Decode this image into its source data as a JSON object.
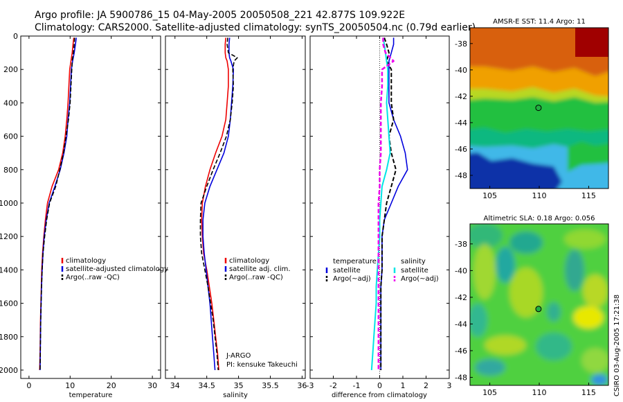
{
  "header": {
    "line1": "Argo profile: JA 5900786_15 04-May-2005 20050508_221 42.877S 109.922E",
    "line2": "Climatology: CARS2000. Satellite-adjusted climatology: synTS_20050504.nc (0.79d earlier)"
  },
  "colors": {
    "climatology": "#ee0000",
    "satellite": "#0000dd",
    "argo": "#000000",
    "salinity_satellite": "#00e5e5",
    "salinity_argo": "#ee00ee"
  },
  "chart_data": [
    {
      "type": "line",
      "name": "temperature-panel",
      "xlabel": "temperature",
      "ylabel": "",
      "xlim": [
        -2,
        32
      ],
      "ylim": [
        2050,
        0
      ],
      "xticks": [
        "0",
        "10",
        "20",
        "30"
      ],
      "yticks": [
        "0",
        "200",
        "400",
        "600",
        "800",
        "1000",
        "1200",
        "1400",
        "1600",
        "1800",
        "2000"
      ],
      "legend": [
        "climatology",
        "satellite-adjusted climatology",
        "Argo(..raw -QC)"
      ],
      "legend_position": "lower-right",
      "depth": [
        10,
        50,
        100,
        150,
        200,
        300,
        400,
        500,
        600,
        700,
        800,
        900,
        1000,
        1100,
        1200,
        1300,
        1400,
        1500,
        1600,
        1700,
        1800,
        1900,
        2000
      ],
      "series": [
        {
          "name": "climatology",
          "values": [
            10.9,
            10.7,
            10.5,
            10.2,
            9.9,
            9.7,
            9.5,
            9.2,
            8.8,
            8.2,
            7.2,
            5.6,
            4.5,
            4.0,
            3.6,
            3.3,
            3.1,
            3.0,
            2.9,
            2.8,
            2.75,
            2.7,
            2.6
          ]
        },
        {
          "name": "satellite-adjusted climatology",
          "values": [
            11.5,
            11.3,
            11.0,
            10.6,
            10.3,
            10.1,
            9.9,
            9.5,
            9.2,
            8.5,
            7.6,
            6.3,
            4.9,
            4.2,
            3.7,
            3.4,
            3.2,
            3.05,
            2.95,
            2.85,
            2.8,
            2.75,
            2.7
          ]
        },
        {
          "name": "Argo(..raw -QC)",
          "values": [
            11.1,
            11.0,
            10.8,
            10.5,
            10.4,
            10.2,
            10.0,
            9.6,
            9.0,
            8.4,
            7.5,
            6.5,
            5.0,
            4.3,
            3.8,
            3.4,
            3.2,
            3.05,
            2.95,
            2.85,
            2.8,
            2.75,
            2.7
          ]
        }
      ]
    },
    {
      "type": "line",
      "name": "salinity-panel",
      "xlabel": "salinity",
      "ylabel": "",
      "xlim": [
        33.85,
        36.05
      ],
      "ylim": [
        2050,
        0
      ],
      "xticks": [
        "34",
        "34.5",
        "35",
        "35.5",
        "36"
      ],
      "legend": [
        "climatology",
        "satellite adj. clim.",
        "Argo(..raw -QC)"
      ],
      "legend_position": "lower-right",
      "depth": [
        10,
        50,
        100,
        130,
        150,
        200,
        300,
        400,
        500,
        600,
        700,
        800,
        900,
        1000,
        1100,
        1200,
        1300,
        1400,
        1500,
        1600,
        1700,
        1800,
        1900,
        2000
      ],
      "series": [
        {
          "name": "climatology",
          "values": [
            34.8,
            34.79,
            34.79,
            34.8,
            34.82,
            34.84,
            34.84,
            34.82,
            34.8,
            34.74,
            34.64,
            34.55,
            34.48,
            34.43,
            34.42,
            34.43,
            34.45,
            34.5,
            34.54,
            34.58,
            34.61,
            34.64,
            34.67,
            34.69
          ]
        },
        {
          "name": "satellite adj. clim.",
          "values": [
            34.86,
            34.85,
            34.85,
            34.86,
            34.88,
            34.92,
            34.91,
            34.89,
            34.87,
            34.84,
            34.77,
            34.66,
            34.55,
            34.47,
            34.44,
            34.44,
            34.46,
            34.49,
            34.52,
            34.55,
            34.57,
            34.59,
            34.61,
            34.63
          ]
        },
        {
          "name": "Argo(..raw -QC)",
          "values": [
            34.83,
            34.82,
            34.84,
            34.98,
            34.93,
            34.91,
            34.92,
            34.9,
            34.87,
            34.81,
            34.71,
            34.6,
            34.5,
            34.41,
            34.4,
            34.4,
            34.42,
            34.47,
            34.52,
            34.56,
            34.6,
            34.63,
            34.66,
            34.68
          ]
        }
      ],
      "annotations": [
        "J-ARGO",
        "PI: kensuke Takeuchi"
      ]
    },
    {
      "type": "line",
      "name": "difference-panel",
      "xlabel": "difference from climatology",
      "ylabel": "",
      "xlim": [
        -3,
        3
      ],
      "ylim": [
        2050,
        0
      ],
      "xticks": [
        "-3",
        "-2",
        "-1",
        "0",
        "1",
        "2",
        "3"
      ],
      "legend_position": "lower-center",
      "legend_groups": [
        {
          "heading": "temperature",
          "items": [
            "satellite",
            "Argo(~adj)"
          ]
        },
        {
          "heading": "salinity",
          "items": [
            "satellite",
            "Argo(~adj)"
          ]
        }
      ],
      "depth": [
        10,
        50,
        100,
        150,
        200,
        300,
        400,
        500,
        600,
        700,
        800,
        900,
        1000,
        1100,
        1200,
        1300,
        1400,
        1500,
        1600,
        1700,
        1800,
        1900,
        2000
      ],
      "series": [
        {
          "name": "temperature satellite",
          "values": [
            0.6,
            0.6,
            0.5,
            0.4,
            0.4,
            0.4,
            0.4,
            0.6,
            0.9,
            1.1,
            1.2,
            0.8,
            0.5,
            0.2,
            0.1,
            0.1,
            0.1,
            0.05,
            0.05,
            0.05,
            0.05,
            0.05,
            0.05
          ]
        },
        {
          "name": "temperature Argo(~adj)",
          "values": [
            0.2,
            0.3,
            0.4,
            0.3,
            0.5,
            0.5,
            0.5,
            0.6,
            0.4,
            0.5,
            0.7,
            0.5,
            0.3,
            0.2,
            0.1,
            0.1,
            0.1,
            0.05,
            0.05,
            0.05,
            0.05,
            0.05,
            0.05
          ]
        },
        {
          "name": "salinity satellite",
          "values": [
            0.15,
            0.2,
            0.25,
            0.3,
            0.35,
            0.35,
            0.3,
            0.35,
            0.4,
            0.45,
            0.3,
            0.1,
            0.05,
            0.0,
            0.0,
            -0.05,
            -0.1,
            -0.15,
            -0.15,
            -0.2,
            -0.25,
            -0.3,
            -0.35
          ]
        },
        {
          "name": "salinity Argo(~adj)",
          "values": [
            0.15,
            0.15,
            0.25,
            0.6,
            0.1,
            0.1,
            0.05,
            0.05,
            0.05,
            0.05,
            0.0,
            0.0,
            -0.05,
            -0.05,
            -0.05,
            -0.05,
            -0.05,
            -0.05,
            -0.05,
            -0.05,
            -0.05,
            -0.05,
            -0.05
          ]
        }
      ]
    },
    {
      "type": "heatmap",
      "name": "sst-map",
      "title": "AMSR-E SST: 11.4 Argo: 11",
      "xlim": [
        103,
        117
      ],
      "ylim": [
        -49,
        -36.8
      ],
      "xticks": [
        "105",
        "110",
        "115"
      ],
      "yticks": [
        "-38",
        "-40",
        "-42",
        "-44",
        "-46",
        "-48"
      ],
      "marker": [
        109.922,
        -42.877
      ]
    },
    {
      "type": "heatmap",
      "name": "sla-map",
      "title": "Altimetric SLA: 0.18 Argo: 0.056",
      "xlim": [
        103,
        117
      ],
      "ylim": [
        -48.6,
        -36.5
      ],
      "xticks": [
        "105",
        "110",
        "115"
      ],
      "yticks": [
        "-38",
        "-40",
        "-42",
        "-44",
        "-46",
        "-48"
      ],
      "marker": [
        109.922,
        -42.877
      ]
    }
  ],
  "footer": {
    "credit": "CSIRO 03-Aug-2005 17:21:38"
  }
}
